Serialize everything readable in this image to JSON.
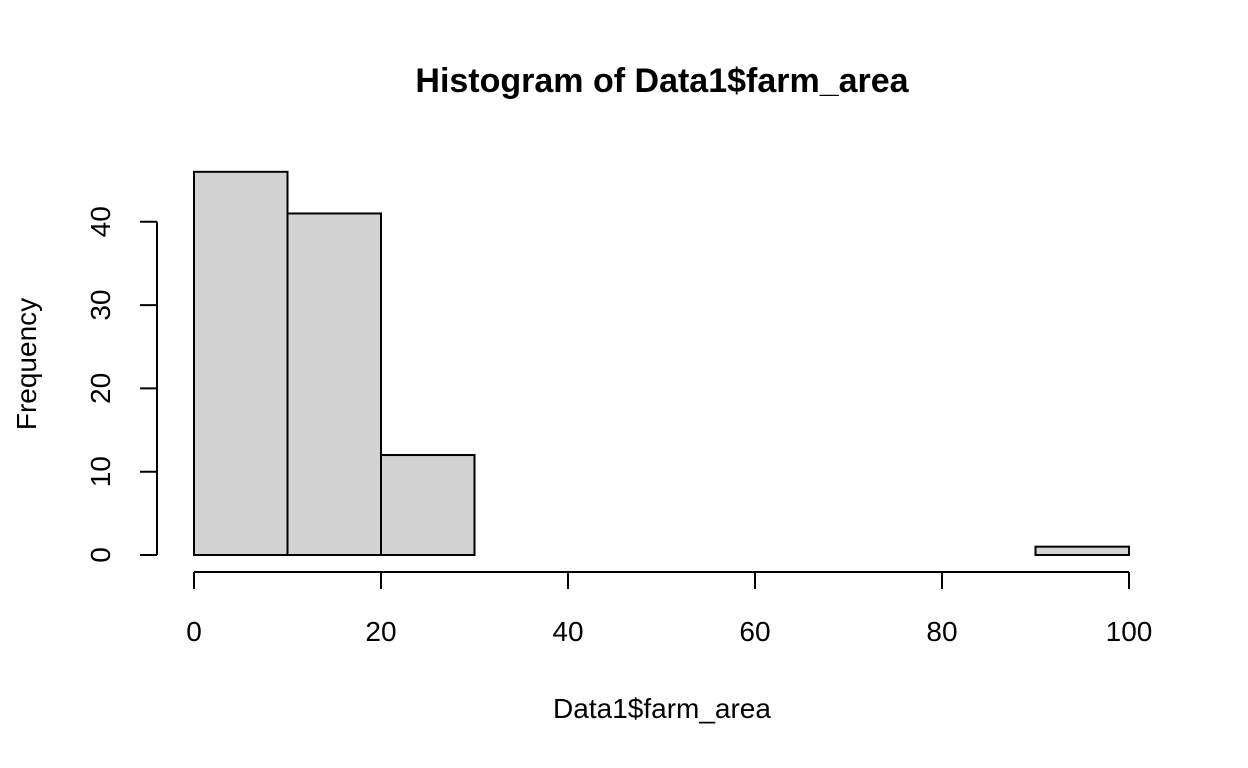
{
  "chart_data": {
    "type": "bar",
    "title": "Histogram of Data1$farm_area",
    "xlabel": "Data1$farm_area",
    "ylabel": "Frequency",
    "bins": [
      {
        "start": 0,
        "end": 10,
        "count": 46
      },
      {
        "start": 10,
        "end": 20,
        "count": 41
      },
      {
        "start": 20,
        "end": 30,
        "count": 12
      },
      {
        "start": 30,
        "end": 40,
        "count": 0
      },
      {
        "start": 40,
        "end": 50,
        "count": 0
      },
      {
        "start": 50,
        "end": 60,
        "count": 0
      },
      {
        "start": 60,
        "end": 70,
        "count": 0
      },
      {
        "start": 70,
        "end": 80,
        "count": 0
      },
      {
        "start": 80,
        "end": 90,
        "count": 0
      },
      {
        "start": 90,
        "end": 100,
        "count": 1
      }
    ],
    "xlim": [
      0,
      100
    ],
    "ylim": [
      0,
      46
    ],
    "x_ticks": [
      0,
      20,
      40,
      60,
      80,
      100
    ],
    "y_ticks": [
      0,
      10,
      20,
      30,
      40
    ],
    "grid": false,
    "bar_color": "#d3d3d3",
    "edge_color": "#000000"
  }
}
